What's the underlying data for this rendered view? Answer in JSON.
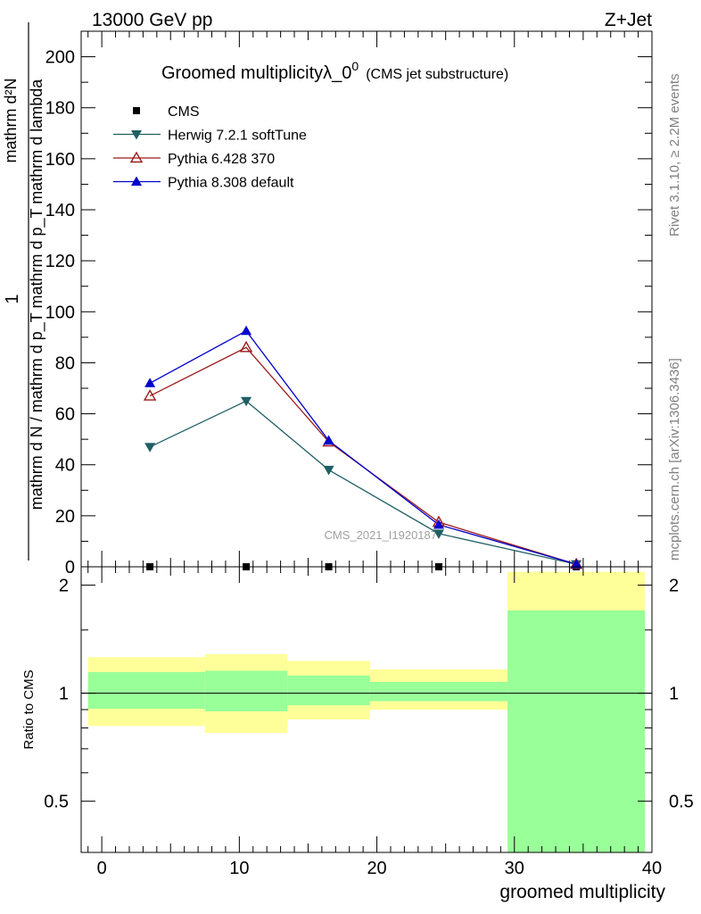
{
  "header": {
    "energy": "13000 GeV pp",
    "process": "Z+Jet"
  },
  "side_labels": {
    "rivet": "Rivet 3.1.10, ≥ 2.2M events",
    "mcplots": "mcplots.cern.ch [arXiv:1306.3436]"
  },
  "colors": {
    "cms": "#000000",
    "herwig": "#1f5f64",
    "pythia6": "#9b1b1b",
    "pythia8": "#0000cc",
    "band_outer": "#ffff99",
    "band_inner": "#99ff99"
  },
  "chart_data": [
    {
      "type": "line",
      "title": "Groomed multiplicityλ_0",
      "title_sup": "0",
      "subtitle": "(CMS jet substructure)",
      "watermark": "CMS_2021_I1920187",
      "ylabel_numerator": "1",
      "ylabel_frac_num": "mathrm d²N",
      "ylabel_denominator": "mathrm d N / mathrm d p_T mathrm d p_T mathrm d lambda",
      "ylim": [
        0,
        210
      ],
      "yticks": [
        0,
        20,
        40,
        60,
        80,
        100,
        120,
        140,
        160,
        180,
        200
      ],
      "xlim": [
        -1.5,
        40
      ],
      "x": [
        3.5,
        10.5,
        16.5,
        24.5,
        34.5
      ],
      "series": [
        {
          "name": "CMS",
          "marker": "square",
          "values": [
            0,
            0,
            0,
            0,
            0
          ]
        },
        {
          "name": "Herwig 7.2.1 softTune",
          "marker": "triangle-down",
          "values": [
            47,
            65,
            38,
            13,
            1
          ]
        },
        {
          "name": "Pythia 6.428 370",
          "marker": "triangle-up-open",
          "values": [
            67,
            86,
            49,
            17.5,
            1
          ]
        },
        {
          "name": "Pythia 8.308 default",
          "marker": "triangle-up",
          "values": [
            72,
            92.5,
            49.5,
            16.5,
            1
          ]
        }
      ]
    },
    {
      "type": "area",
      "ylabel": "Ratio to CMS",
      "xlabel": "groomed multiplicity",
      "ylim": [
        0.36,
        2.25
      ],
      "yticks": [
        0.5,
        1,
        2
      ],
      "ytick_labels": [
        "0.5",
        "1",
        "2"
      ],
      "xlim": [
        -1.5,
        40
      ],
      "xticks": [
        0,
        10,
        20,
        30,
        40
      ],
      "xtick_labels": [
        "0",
        "10",
        "20",
        "30",
        "40"
      ],
      "reference_line": 1,
      "bins": [
        {
          "lo": -1,
          "hi": 7.5,
          "outer": [
            0.81,
            1.26
          ],
          "inner": [
            0.905,
            1.145
          ]
        },
        {
          "lo": 7.5,
          "hi": 13.5,
          "outer": [
            0.775,
            1.285
          ],
          "inner": [
            0.89,
            1.155
          ]
        },
        {
          "lo": 13.5,
          "hi": 19.5,
          "outer": [
            0.845,
            1.23
          ],
          "inner": [
            0.925,
            1.12
          ]
        },
        {
          "lo": 19.5,
          "hi": 29.5,
          "outer": [
            0.9,
            1.165
          ],
          "inner": [
            0.95,
            1.075
          ]
        },
        {
          "lo": 29.5,
          "hi": 39.5,
          "outer": [
            0.36,
            2.18
          ],
          "inner": [
            0.36,
            1.7
          ]
        }
      ]
    }
  ]
}
